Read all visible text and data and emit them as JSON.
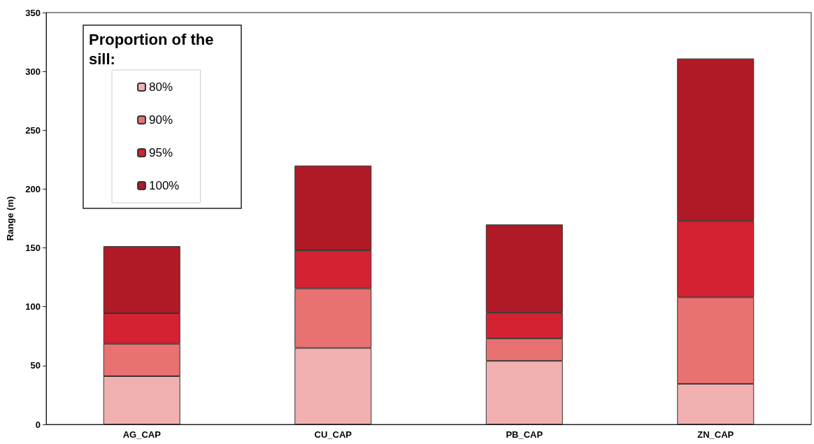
{
  "chart_data": {
    "type": "bar",
    "stacked": true,
    "ylabel": "Range (m)",
    "legend_title": "Proportion of the sill:",
    "legend": "top left",
    "grid": false,
    "categories": [
      "AG_CAP",
      "CU_CAP",
      "PB_CAP",
      "ZN_CAP"
    ],
    "ylim": [
      0,
      350
    ],
    "yticks": [
      0,
      50,
      100,
      150,
      200,
      250,
      300,
      350
    ],
    "series": [
      {
        "name": "80%",
        "color": "#f0b0b0",
        "values": [
          41,
          65,
          54,
          34.5
        ]
      },
      {
        "name": "90%",
        "color": "#e87272",
        "values": [
          27.5,
          50.5,
          19,
          73.5
        ]
      },
      {
        "name": "95%",
        "color": "#d42232",
        "values": [
          26,
          32.5,
          22,
          65
        ]
      },
      {
        "name": "100%",
        "color": "#b01a26",
        "values": [
          57,
          72,
          75,
          138
        ]
      }
    ]
  }
}
